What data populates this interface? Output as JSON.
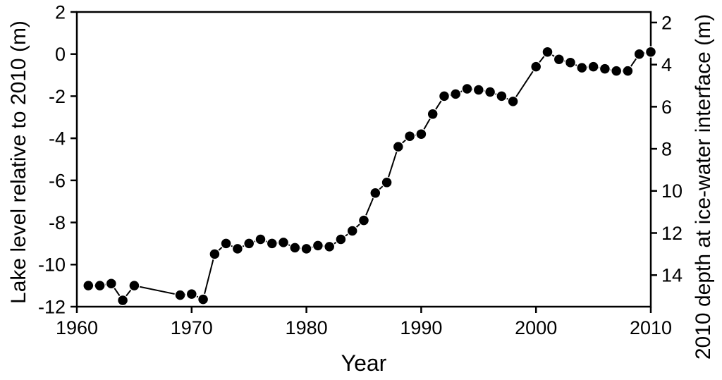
{
  "figure": {
    "background": "#ffffff",
    "ink_color": "#000000"
  },
  "chart_data": {
    "type": "line",
    "title": "",
    "xlabel": "Year",
    "ylabel_left": "Lake level relative to 2010 (m)",
    "ylabel_right": "2010 depth at ice-water interface (m)",
    "xlim": [
      1960,
      2010
    ],
    "ylim_left": [
      -12,
      2
    ],
    "x_ticks": [
      1960,
      1970,
      1980,
      1990,
      2000,
      2010
    ],
    "y_ticks_left": [
      2,
      0,
      -2,
      -4,
      -6,
      -8,
      -10,
      -12
    ],
    "y_ticks_right": [
      2,
      4,
      6,
      8,
      10,
      12,
      14
    ],
    "right_axis_relation": "depth_m = 3.5 - lake_level_m",
    "right_axis_offset": 3.5,
    "grid": false,
    "legend": null,
    "marker": "filled-circle",
    "colors": {
      "line": "#000000",
      "marker_fill": "#000000",
      "marker_edge": "#ffffff",
      "axis": "#000000",
      "background": "#ffffff"
    },
    "series": [
      {
        "name": "Lake level relative to 2010",
        "points": [
          [
            1961,
            -11.0
          ],
          [
            1962,
            -11.0
          ],
          [
            1963,
            -10.9
          ],
          [
            1964,
            -11.7
          ],
          [
            1965,
            -11.0
          ],
          [
            1969,
            -11.45
          ],
          [
            1970,
            -11.4
          ],
          [
            1971,
            -11.65
          ],
          [
            1972,
            -9.5
          ],
          [
            1973,
            -9.0
          ],
          [
            1974,
            -9.25
          ],
          [
            1975,
            -9.0
          ],
          [
            1976,
            -8.8
          ],
          [
            1977,
            -9.0
          ],
          [
            1978,
            -8.95
          ],
          [
            1979,
            -9.2
          ],
          [
            1980,
            -9.25
          ],
          [
            1981,
            -9.1
          ],
          [
            1982,
            -9.15
          ],
          [
            1983,
            -8.8
          ],
          [
            1984,
            -8.4
          ],
          [
            1985,
            -7.9
          ],
          [
            1986,
            -6.6
          ],
          [
            1987,
            -6.1
          ],
          [
            1988,
            -4.4
          ],
          [
            1989,
            -3.9
          ],
          [
            1990,
            -3.8
          ],
          [
            1991,
            -2.85
          ],
          [
            1992,
            -2.0
          ],
          [
            1993,
            -1.9
          ],
          [
            1994,
            -1.65
          ],
          [
            1995,
            -1.7
          ],
          [
            1996,
            -1.8
          ],
          [
            1997,
            -2.0
          ],
          [
            1998,
            -2.25
          ],
          [
            2000,
            -0.6
          ],
          [
            2001,
            0.1
          ],
          [
            2002,
            -0.25
          ],
          [
            2003,
            -0.4
          ],
          [
            2004,
            -0.65
          ],
          [
            2005,
            -0.6
          ],
          [
            2006,
            -0.7
          ],
          [
            2007,
            -0.8
          ],
          [
            2008,
            -0.8
          ],
          [
            2009,
            0.0
          ],
          [
            2010,
            0.1
          ]
        ]
      }
    ]
  }
}
